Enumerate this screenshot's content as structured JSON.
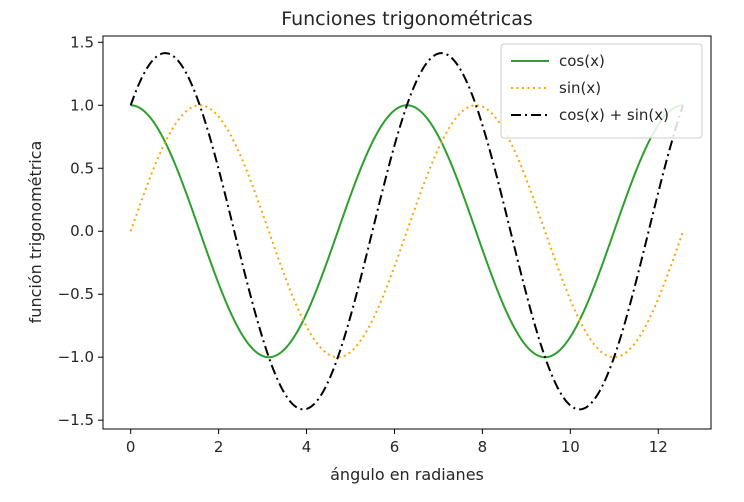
{
  "chart_data": {
    "type": "line",
    "title": "Funciones trigonométricas",
    "xlabel": "ángulo en radianes",
    "ylabel": "función trigonométrica",
    "xlim": [
      -0.63,
      13.2
    ],
    "ylim": [
      -1.57,
      1.55
    ],
    "xticks": [
      0,
      2,
      4,
      6,
      8,
      10,
      12
    ],
    "yticks": [
      -1.5,
      -1.0,
      -0.5,
      0.0,
      0.5,
      1.0,
      1.5
    ],
    "xtick_labels": [
      "0",
      "2",
      "4",
      "6",
      "8",
      "10",
      "12"
    ],
    "ytick_labels": [
      "−1.5",
      "−1.0",
      "−0.5",
      "0.0",
      "0.5",
      "1.0",
      "1.5"
    ],
    "grid": false,
    "legend_position": "top-right",
    "x": {
      "start": 0,
      "end": 12.566,
      "samples": 400
    },
    "series": [
      {
        "name": "cos(x)",
        "function": "cos(x)",
        "color": "#2ca02c",
        "style": "solid"
      },
      {
        "name": "sin(x)",
        "function": "sin(x)",
        "color": "#ffa500",
        "style": "dotted"
      },
      {
        "name": "cos(x) + sin(x)",
        "function": "cos(x) + sin(x)",
        "color": "#000000",
        "style": "dashdot"
      }
    ]
  }
}
